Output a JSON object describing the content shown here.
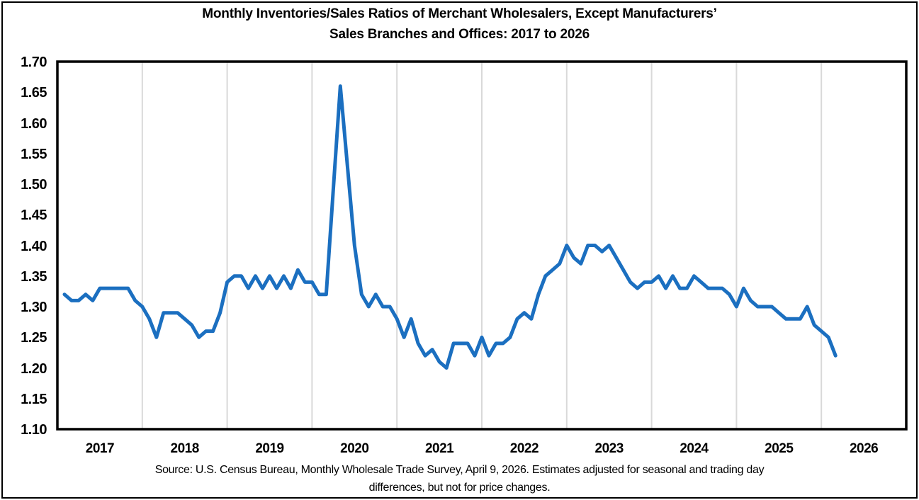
{
  "title": {
    "line1": "Monthly Inventories/Sales Ratios of Merchant Wholesalers, Except Manufacturers’",
    "line2": "Sales Branches and Offices: 2017 to 2026"
  },
  "source": {
    "line1": "Source: U.S. Census Bureau, Monthly Wholesale Trade Survey, April 9, 2026. Estimates adjusted for seasonal and trading day",
    "line2": "differences, but not for price changes."
  },
  "colors": {
    "line": "#1B6FC0",
    "gridline": "#D9D9D9",
    "plot_border": "#000000",
    "text": "#000000",
    "background": "#FFFFFF"
  },
  "chart_data": {
    "type": "line",
    "title": "Monthly Inventories/Sales Ratios of Merchant Wholesalers, Except Manufacturers’ Sales Branches and Offices: 2017 to 2026",
    "xlabel": "",
    "ylabel": "",
    "x_axis": {
      "tick_labels": [
        "2017",
        "2018",
        "2019",
        "2020",
        "2021",
        "2022",
        "2023",
        "2024",
        "2025",
        "2026"
      ],
      "range_months": [
        "2017-01",
        "2026-12"
      ],
      "gridlines": "vertical at each year boundary"
    },
    "y_axis": {
      "min": 1.1,
      "max": 1.7,
      "step": 0.05,
      "tick_labels": [
        "1.70",
        "1.65",
        "1.60",
        "1.55",
        "1.50",
        "1.45",
        "1.40",
        "1.35",
        "1.30",
        "1.25",
        "1.20",
        "1.15",
        "1.10"
      ],
      "horizontal_gridlines": false
    },
    "legend": "none",
    "series": [
      {
        "name": "Inventories/Sales Ratio",
        "start_month": "2017-01",
        "end_month": "2026-02",
        "monthly_values": [
          1.32,
          1.31,
          1.31,
          1.32,
          1.31,
          1.33,
          1.33,
          1.33,
          1.33,
          1.33,
          1.31,
          1.3,
          1.28,
          1.25,
          1.29,
          1.29,
          1.29,
          1.28,
          1.27,
          1.25,
          1.26,
          1.26,
          1.29,
          1.34,
          1.35,
          1.35,
          1.33,
          1.35,
          1.33,
          1.35,
          1.33,
          1.35,
          1.33,
          1.36,
          1.34,
          1.34,
          1.32,
          1.32,
          1.49,
          1.66,
          1.53,
          1.4,
          1.32,
          1.3,
          1.32,
          1.3,
          1.3,
          1.28,
          1.25,
          1.28,
          1.24,
          1.22,
          1.23,
          1.21,
          1.2,
          1.24,
          1.24,
          1.24,
          1.22,
          1.25,
          1.22,
          1.24,
          1.24,
          1.25,
          1.28,
          1.29,
          1.28,
          1.32,
          1.35,
          1.36,
          1.37,
          1.4,
          1.38,
          1.37,
          1.4,
          1.4,
          1.39,
          1.4,
          1.38,
          1.36,
          1.34,
          1.33,
          1.34,
          1.34,
          1.35,
          1.33,
          1.35,
          1.33,
          1.33,
          1.35,
          1.34,
          1.33,
          1.33,
          1.33,
          1.32,
          1.3,
          1.33,
          1.31,
          1.3,
          1.3,
          1.3,
          1.29,
          1.28,
          1.28,
          1.28,
          1.3,
          1.27,
          1.26,
          1.25,
          1.22
        ]
      }
    ],
    "notable_points": {
      "peak": {
        "month": "2020-04",
        "value": 1.66
      },
      "trough": {
        "month": "2021-07",
        "value": 1.2
      },
      "last": {
        "month": "2026-02",
        "value": 1.22
      }
    }
  }
}
